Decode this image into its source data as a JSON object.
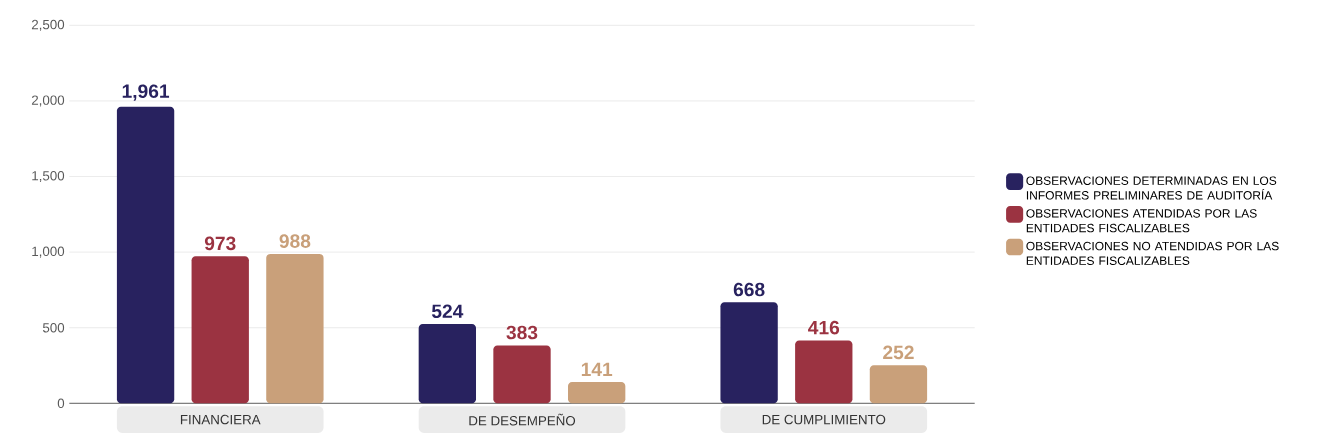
{
  "chart_data": {
    "type": "bar",
    "categories": [
      "FINANCIERA",
      "DE DESEMPEÑO",
      "DE CUMPLIMIENTO"
    ],
    "series": [
      {
        "name": "OBSERVACIONES DETERMINADAS EN LOS INFORMES PRELIMINARES DE AUDITORÍA",
        "color": "#28225f",
        "values": [
          1961,
          524,
          668
        ],
        "value_labels": [
          "1,961",
          "524",
          "668"
        ]
      },
      {
        "name": "OBSERVACIONES ATENDIDAS POR LAS ENTIDADES FISCALIZABLES",
        "color": "#9b3341",
        "values": [
          973,
          383,
          416
        ],
        "value_labels": [
          "973",
          "383",
          "416"
        ]
      },
      {
        "name": "OBSERVACIONES NO ATENDIDAS POR LAS ENTIDADES FISCALIZABLES",
        "color": "#c9a07a",
        "values": [
          988,
          141,
          252
        ],
        "value_labels": [
          "988",
          "141",
          "252"
        ]
      }
    ],
    "ylim": [
      0,
      2500
    ],
    "yticks": [
      0,
      500,
      {
        "value": 1000,
        "label": "1,000"
      },
      {
        "value": 1500,
        "label": "1,500"
      },
      {
        "value": 2000,
        "label": "2,000"
      },
      {
        "value": 2500,
        "label": "2,500"
      }
    ],
    "grid": "y",
    "legend": "right"
  }
}
